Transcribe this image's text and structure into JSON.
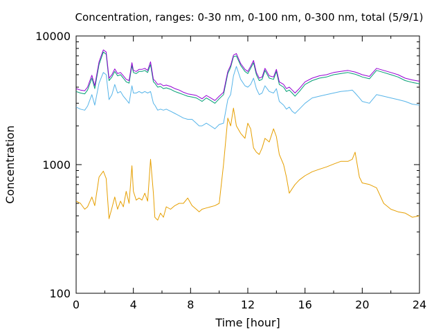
{
  "chart_data": {
    "type": "line",
    "title": "Concentration, ranges: 0-30 nm, 0-100 nm, 0-300 nm, total (5/9/1)",
    "xlabel": "Time [hour]",
    "ylabel": "Concentration",
    "xlim": [
      0,
      24
    ],
    "ylim": [
      100,
      10000
    ],
    "yscale": "log",
    "grid": false,
    "legend": "none",
    "xticks": [
      "0",
      "4",
      "8",
      "12",
      "16",
      "20",
      "24"
    ],
    "xtick_values": [
      0,
      4,
      8,
      12,
      16,
      20,
      24
    ],
    "yticks": [
      "100",
      "1000",
      "10000"
    ],
    "ytick_values": [
      100,
      1000,
      10000
    ],
    "series": [
      {
        "color": "#e69f00",
        "x": [
          0,
          0.3,
          0.6,
          0.8,
          1.1,
          1.3,
          1.6,
          1.9,
          2.1,
          2.3,
          2.5,
          2.7,
          2.9,
          3.1,
          3.3,
          3.5,
          3.7,
          3.9,
          4.0,
          4.2,
          4.4,
          4.6,
          4.8,
          5.0,
          5.2,
          5.4,
          5.5,
          5.7,
          5.9,
          6.1,
          6.3,
          6.6,
          6.9,
          7.2,
          7.5,
          7.8,
          8.1,
          8.4,
          8.6,
          8.8,
          9.1,
          9.4,
          9.7,
          10.0,
          10.3,
          10.6,
          10.8,
          11.0,
          11.2,
          11.5,
          11.8,
          12.0,
          12.2,
          12.4,
          12.6,
          12.8,
          13.0,
          13.2,
          13.5,
          13.8,
          14.0,
          14.2,
          14.5,
          14.7,
          14.9,
          15.1,
          15.3,
          15.6,
          16.0,
          16.5,
          17.0,
          17.5,
          18.0,
          18.5,
          19.0,
          19.3,
          19.5,
          19.8,
          20.0,
          20.5,
          21.0,
          21.5,
          22.0,
          22.5,
          23.0,
          23.5,
          24.0
        ],
        "values": [
          520,
          500,
          450,
          470,
          560,
          480,
          800,
          890,
          780,
          380,
          460,
          560,
          450,
          520,
          470,
          620,
          500,
          980,
          620,
          530,
          550,
          530,
          600,
          520,
          1100,
          600,
          390,
          370,
          420,
          390,
          470,
          450,
          480,
          500,
          500,
          550,
          480,
          450,
          430,
          450,
          460,
          470,
          480,
          500,
          1000,
          2300,
          2000,
          2750,
          2000,
          1750,
          1600,
          2100,
          1900,
          1350,
          1250,
          1200,
          1350,
          1600,
          1500,
          1900,
          1650,
          1200,
          1000,
          800,
          600,
          650,
          700,
          760,
          820,
          880,
          920,
          960,
          1010,
          1060,
          1060,
          1100,
          1250,
          800,
          720,
          700,
          660,
          500,
          450,
          430,
          420,
          390,
          400
        ]
      },
      {
        "color": "#56b4e9",
        "x": [
          0,
          0.3,
          0.6,
          0.8,
          1.1,
          1.3,
          1.6,
          1.9,
          2.1,
          2.3,
          2.5,
          2.7,
          2.9,
          3.1,
          3.3,
          3.5,
          3.7,
          3.9,
          4.0,
          4.2,
          4.4,
          4.6,
          4.8,
          5.0,
          5.2,
          5.4,
          5.5,
          5.7,
          5.9,
          6.1,
          6.3,
          6.6,
          6.9,
          7.2,
          7.5,
          7.8,
          8.1,
          8.4,
          8.6,
          8.8,
          9.1,
          9.4,
          9.7,
          10.0,
          10.3,
          10.6,
          10.8,
          11.0,
          11.2,
          11.5,
          11.8,
          12.0,
          12.2,
          12.4,
          12.6,
          12.8,
          13.0,
          13.2,
          13.5,
          13.8,
          14.0,
          14.2,
          14.5,
          14.7,
          14.9,
          15.1,
          15.3,
          15.6,
          16.0,
          16.5,
          17.0,
          17.5,
          18.0,
          18.5,
          19.0,
          19.3,
          19.5,
          19.8,
          20.0,
          20.5,
          21.0,
          21.5,
          22.0,
          22.5,
          23.0,
          23.5,
          24.0
        ],
        "values": [
          2800,
          2700,
          2650,
          2850,
          3500,
          2900,
          4300,
          5200,
          5000,
          3200,
          3500,
          4200,
          3600,
          3700,
          3400,
          3200,
          3000,
          4100,
          3600,
          3600,
          3700,
          3600,
          3700,
          3600,
          3700,
          3000,
          2900,
          2650,
          2700,
          2650,
          2700,
          2600,
          2500,
          2400,
          2300,
          2250,
          2250,
          2100,
          2000,
          2000,
          2100,
          2000,
          1900,
          2050,
          2100,
          3200,
          3500,
          4900,
          5800,
          4600,
          4100,
          4000,
          4200,
          4700,
          3900,
          3500,
          3600,
          4100,
          3700,
          3600,
          3900,
          3100,
          2900,
          2700,
          2800,
          2600,
          2500,
          2700,
          3000,
          3300,
          3400,
          3500,
          3600,
          3700,
          3750,
          3800,
          3600,
          3300,
          3100,
          3000,
          3500,
          3400,
          3300,
          3200,
          3100,
          2950,
          2900
        ]
      },
      {
        "color": "#009e73",
        "x": [
          0,
          0.3,
          0.6,
          0.8,
          1.1,
          1.3,
          1.6,
          1.9,
          2.1,
          2.3,
          2.5,
          2.7,
          2.9,
          3.1,
          3.3,
          3.5,
          3.7,
          3.9,
          4.0,
          4.2,
          4.4,
          4.6,
          4.8,
          5.0,
          5.2,
          5.4,
          5.5,
          5.7,
          5.9,
          6.1,
          6.3,
          6.6,
          6.9,
          7.2,
          7.5,
          7.8,
          8.1,
          8.4,
          8.6,
          8.8,
          9.1,
          9.4,
          9.7,
          10.0,
          10.3,
          10.6,
          10.8,
          11.0,
          11.2,
          11.5,
          11.8,
          12.0,
          12.2,
          12.4,
          12.6,
          12.8,
          13.0,
          13.2,
          13.5,
          13.8,
          14.0,
          14.2,
          14.5,
          14.7,
          14.9,
          15.1,
          15.3,
          15.6,
          16.0,
          16.5,
          17.0,
          17.5,
          18.0,
          18.5,
          19.0,
          19.3,
          19.5,
          19.8,
          20.0,
          20.5,
          21.0,
          21.5,
          22.0,
          22.5,
          23.0,
          23.5,
          24.0
        ],
        "values": [
          3700,
          3600,
          3550,
          3800,
          4700,
          3900,
          6000,
          7500,
          7200,
          4500,
          4800,
          5300,
          4900,
          5000,
          4700,
          4400,
          4300,
          5900,
          5200,
          5100,
          5300,
          5300,
          5400,
          5200,
          6000,
          4400,
          4300,
          4000,
          4050,
          3900,
          3950,
          3850,
          3700,
          3600,
          3500,
          3400,
          3350,
          3300,
          3200,
          3100,
          3300,
          3150,
          3000,
          3250,
          3500,
          5100,
          5700,
          6900,
          7000,
          5900,
          5300,
          5100,
          5600,
          6200,
          5000,
          4500,
          4600,
          5400,
          4700,
          4600,
          5300,
          4200,
          4000,
          3700,
          3800,
          3600,
          3400,
          3700,
          4200,
          4500,
          4700,
          4800,
          5000,
          5100,
          5200,
          5100,
          5050,
          4900,
          4800,
          4650,
          5400,
          5200,
          5000,
          4800,
          4500,
          4350,
          4250
        ]
      },
      {
        "color": "#9400d3",
        "x": [
          0,
          0.3,
          0.6,
          0.8,
          1.1,
          1.3,
          1.6,
          1.9,
          2.1,
          2.3,
          2.5,
          2.7,
          2.9,
          3.1,
          3.3,
          3.5,
          3.7,
          3.9,
          4.0,
          4.2,
          4.4,
          4.6,
          4.8,
          5.0,
          5.2,
          5.4,
          5.5,
          5.7,
          5.9,
          6.1,
          6.3,
          6.6,
          6.9,
          7.2,
          7.5,
          7.8,
          8.1,
          8.4,
          8.6,
          8.8,
          9.1,
          9.4,
          9.7,
          10.0,
          10.3,
          10.6,
          10.8,
          11.0,
          11.2,
          11.5,
          11.8,
          12.0,
          12.2,
          12.4,
          12.6,
          12.8,
          13.0,
          13.2,
          13.5,
          13.8,
          14.0,
          14.2,
          14.5,
          14.7,
          14.9,
          15.1,
          15.3,
          15.6,
          16.0,
          16.5,
          17.0,
          17.5,
          18.0,
          18.5,
          19.0,
          19.3,
          19.5,
          19.8,
          20.0,
          20.5,
          21.0,
          21.5,
          22.0,
          22.5,
          23.0,
          23.5,
          24.0
        ],
        "values": [
          3900,
          3800,
          3750,
          4000,
          4950,
          4100,
          6300,
          7800,
          7500,
          4700,
          5000,
          5550,
          5100,
          5200,
          4900,
          4600,
          4500,
          6200,
          5400,
          5300,
          5500,
          5500,
          5600,
          5400,
          6300,
          4600,
          4500,
          4200,
          4250,
          4100,
          4150,
          4050,
          3900,
          3800,
          3650,
          3550,
          3500,
          3450,
          3350,
          3250,
          3450,
          3300,
          3150,
          3400,
          3650,
          5300,
          5900,
          7100,
          7300,
          6100,
          5500,
          5300,
          5800,
          6450,
          5200,
          4700,
          4800,
          5600,
          4900,
          4800,
          5500,
          4400,
          4200,
          3900,
          4000,
          3800,
          3600,
          3900,
          4400,
          4700,
          4900,
          5000,
          5200,
          5300,
          5400,
          5300,
          5250,
          5100,
          5000,
          4850,
          5600,
          5400,
          5200,
          5000,
          4700,
          4550,
          4450
        ]
      }
    ]
  }
}
